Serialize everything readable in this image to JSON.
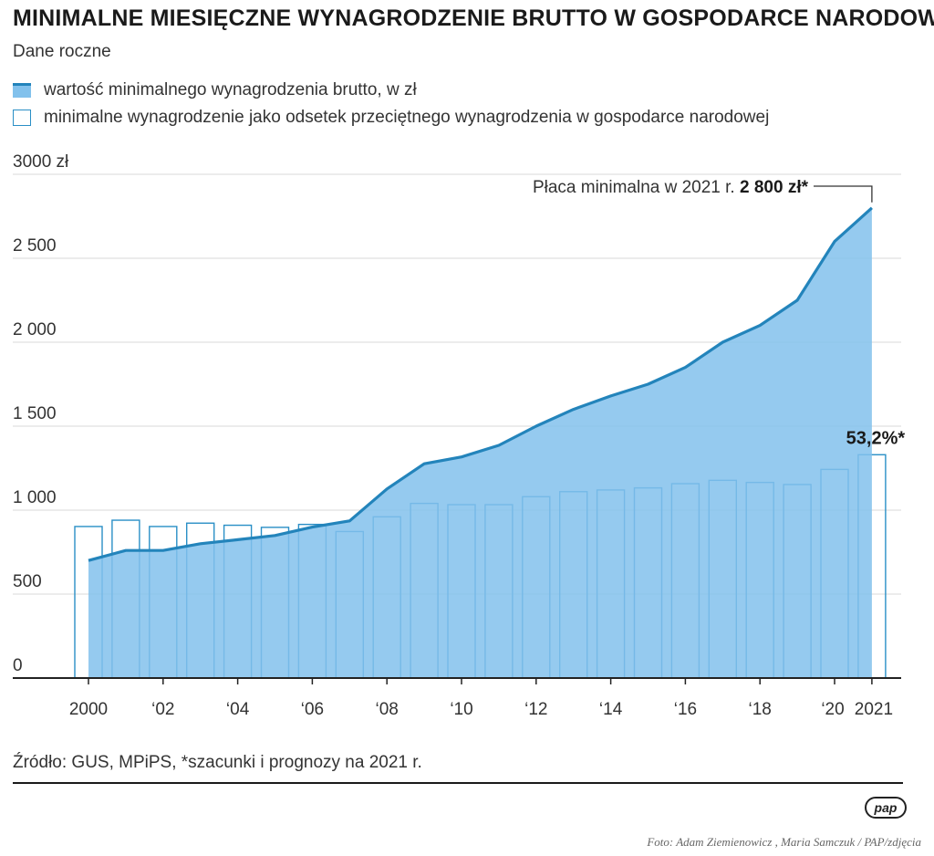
{
  "header": {
    "title": "MINIMALNE MIESIĘCZNE WYNAGRODZENIE BRUTTO W GOSPODARCE NARODOWEJ",
    "subtitle": "Dane roczne"
  },
  "legend": {
    "area_label": "wartość minimalnego wynagrodzenia brutto, w zł",
    "bar_label": "minimalne wynagrodzenie jako odsetek przeciętnego wynagrodzenia w gospodarce narodowej"
  },
  "annotations": {
    "min_wage_prefix": "Płaca minimalna w 2021 r.",
    "min_wage_value": "2 800 zł*",
    "percent_label": "53,2%*"
  },
  "footer": {
    "source": "Źródło: GUS, MPiPS, *szacunki i prognozy na 2021 r.",
    "logo": "pap",
    "credit": "Foto: Adam Ziemienowicz , Maria Samczuk / PAP/zdjęcia"
  },
  "colors": {
    "area_fill": "#82c1ec",
    "line": "#2384bb",
    "bar_stroke": "#2a8fc6",
    "grid": "#d9d9d9",
    "axis": "#222222"
  },
  "chart_data": {
    "type": "area",
    "years": [
      2000,
      2001,
      2002,
      2003,
      2004,
      2005,
      2006,
      2007,
      2008,
      2009,
      2010,
      2011,
      2012,
      2013,
      2014,
      2015,
      2016,
      2017,
      2018,
      2019,
      2020,
      2021
    ],
    "x_tick_labels": [
      "2000",
      "‘02",
      "‘04",
      "‘06",
      "‘08",
      "‘10",
      "‘12",
      "‘14",
      "‘16",
      "‘18",
      "‘20",
      "2021"
    ],
    "x_tick_years": [
      2000,
      2002,
      2004,
      2006,
      2008,
      2010,
      2012,
      2014,
      2016,
      2018,
      2020,
      2021
    ],
    "y_ticks": [
      0,
      500,
      1000,
      1500,
      2000,
      2500,
      3000
    ],
    "y_tick_labels": [
      "0",
      "500",
      "1 000",
      "1 500",
      "2 000",
      "2 500",
      "3000 zł"
    ],
    "ylim": [
      0,
      3000
    ],
    "grid": true,
    "series": [
      {
        "name": "wartość minimalnego wynagrodzenia brutto, w zł",
        "kind": "area",
        "values": [
          700,
          760,
          760,
          800,
          824,
          849,
          899,
          936,
          1126,
          1276,
          1317,
          1386,
          1500,
          1600,
          1680,
          1750,
          1850,
          2000,
          2100,
          2250,
          2600,
          2800
        ]
      },
      {
        "name": "minimalne wynagrodzenie jako odsetek przeciętnego wynagrodzenia w gospodarce narodowej",
        "kind": "bar",
        "values": [
          36.1,
          37.6,
          36.1,
          36.9,
          36.4,
          35.9,
          36.6,
          34.9,
          38.4,
          41.6,
          41.3,
          41.3,
          43.2,
          44.4,
          44.8,
          45.3,
          46.3,
          47.1,
          46.6,
          46.1,
          49.7,
          53.2
        ]
      }
    ]
  }
}
